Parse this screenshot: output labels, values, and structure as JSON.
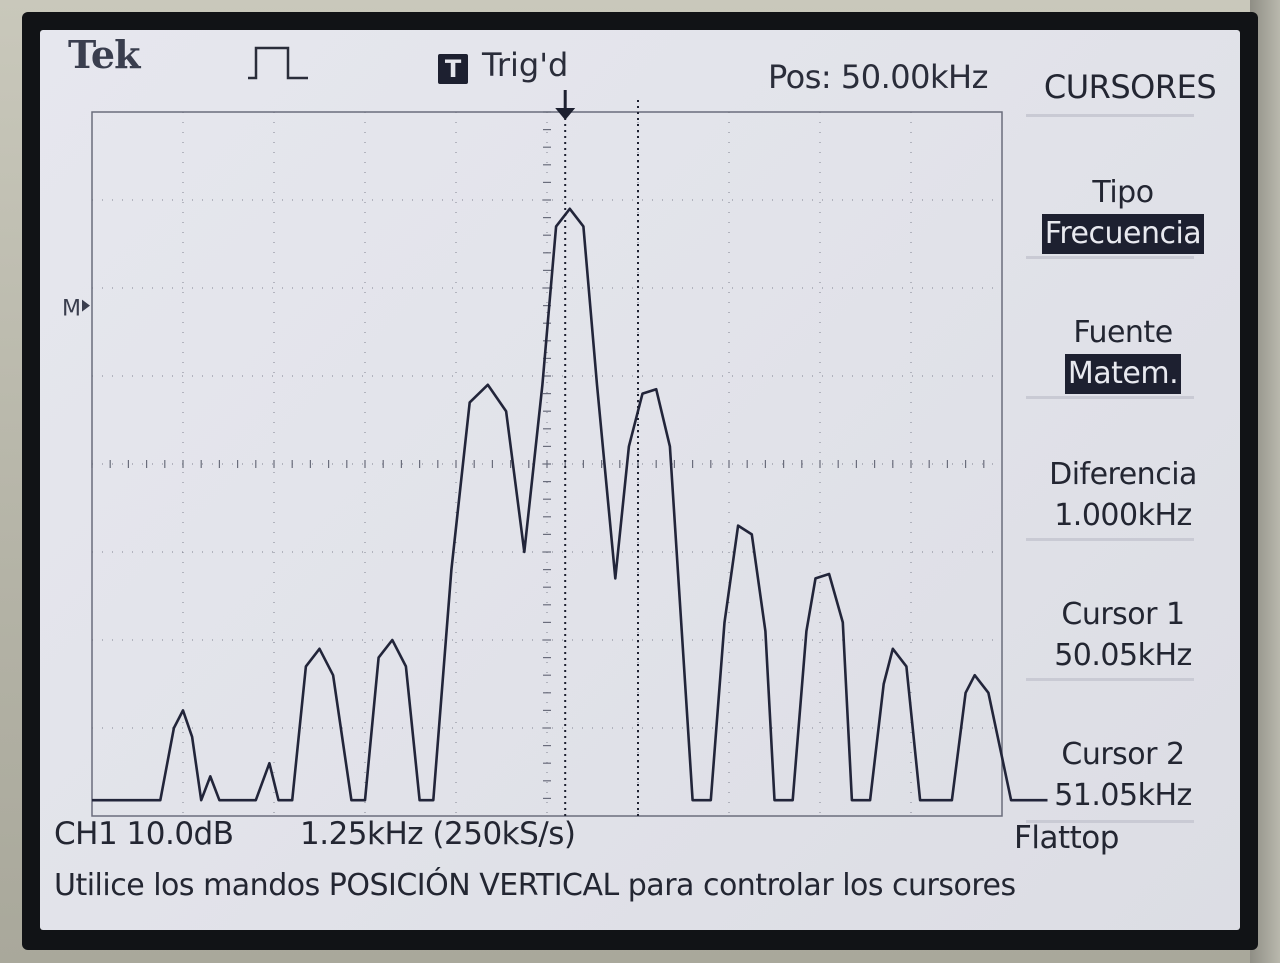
{
  "brand": "Tek",
  "acquisition_icon": "pulse-step-icon",
  "trigger": {
    "badge": "T",
    "status": "Trig'd"
  },
  "position": "Pos: 50.00kHz",
  "menu": {
    "title": "CURSORES",
    "items": [
      {
        "label": "Tipo",
        "value": "Frecuencia",
        "selected": true
      },
      {
        "label": "Fuente",
        "value": "Matem.",
        "selected": true
      },
      {
        "label": "Diferencia",
        "value": "1.000kHz",
        "selected": false
      },
      {
        "label": "Cursor 1",
        "value": "50.05kHz",
        "selected": false
      },
      {
        "label": "Cursor 2",
        "value": "51.05kHz",
        "selected": false
      }
    ]
  },
  "ground_marker": "M",
  "channel_scale": "CH1 10.0dB",
  "timebase": "1.25kHz (250kS/s)",
  "window": "Flattop",
  "hint": "Utilice los mandos POSICIÓN VERTICAL para controlar los cursores",
  "colors": {
    "screen_bg": "#e4e5ec",
    "trace": "#22253a",
    "grid": "#6a6d7c",
    "inverse_bg": "#1d2030"
  },
  "cursors": {
    "cursor1_division": 5.2,
    "cursor2_division": 6.0
  },
  "trace_divisions": [
    [
      0.0,
      7.82
    ],
    [
      0.75,
      7.82
    ],
    [
      0.9,
      7.0
    ],
    [
      1.0,
      6.8
    ],
    [
      1.1,
      7.1
    ],
    [
      1.2,
      7.82
    ],
    [
      1.3,
      7.55
    ],
    [
      1.4,
      7.82
    ],
    [
      1.8,
      7.82
    ],
    [
      1.95,
      7.4
    ],
    [
      2.05,
      7.82
    ],
    [
      2.2,
      7.82
    ],
    [
      2.35,
      6.3
    ],
    [
      2.5,
      6.1
    ],
    [
      2.65,
      6.4
    ],
    [
      2.85,
      7.82
    ],
    [
      3.0,
      7.82
    ],
    [
      3.15,
      6.2
    ],
    [
      3.3,
      6.0
    ],
    [
      3.45,
      6.3
    ],
    [
      3.6,
      7.82
    ],
    [
      3.75,
      7.82
    ],
    [
      3.95,
      5.2
    ],
    [
      4.15,
      3.3
    ],
    [
      4.35,
      3.1
    ],
    [
      4.55,
      3.4
    ],
    [
      4.75,
      5.0
    ],
    [
      4.95,
      3.1
    ],
    [
      5.1,
      1.3
    ],
    [
      5.25,
      1.1
    ],
    [
      5.4,
      1.3
    ],
    [
      5.55,
      3.1
    ],
    [
      5.75,
      5.3
    ],
    [
      5.9,
      3.8
    ],
    [
      6.05,
      3.2
    ],
    [
      6.2,
      3.15
    ],
    [
      6.35,
      3.8
    ],
    [
      6.6,
      7.82
    ],
    [
      6.8,
      7.82
    ],
    [
      6.95,
      5.8
    ],
    [
      7.1,
      4.7
    ],
    [
      7.25,
      4.8
    ],
    [
      7.4,
      5.9
    ],
    [
      7.5,
      7.82
    ],
    [
      7.7,
      7.82
    ],
    [
      7.85,
      5.9
    ],
    [
      7.95,
      5.3
    ],
    [
      8.1,
      5.25
    ],
    [
      8.25,
      5.8
    ],
    [
      8.35,
      7.82
    ],
    [
      8.55,
      7.82
    ],
    [
      8.7,
      6.5
    ],
    [
      8.8,
      6.1
    ],
    [
      8.95,
      6.3
    ],
    [
      9.1,
      7.82
    ],
    [
      9.45,
      7.82
    ],
    [
      9.6,
      6.6
    ],
    [
      9.7,
      6.4
    ],
    [
      9.85,
      6.6
    ],
    [
      10.1,
      7.82
    ],
    [
      10.5,
      7.82
    ]
  ]
}
